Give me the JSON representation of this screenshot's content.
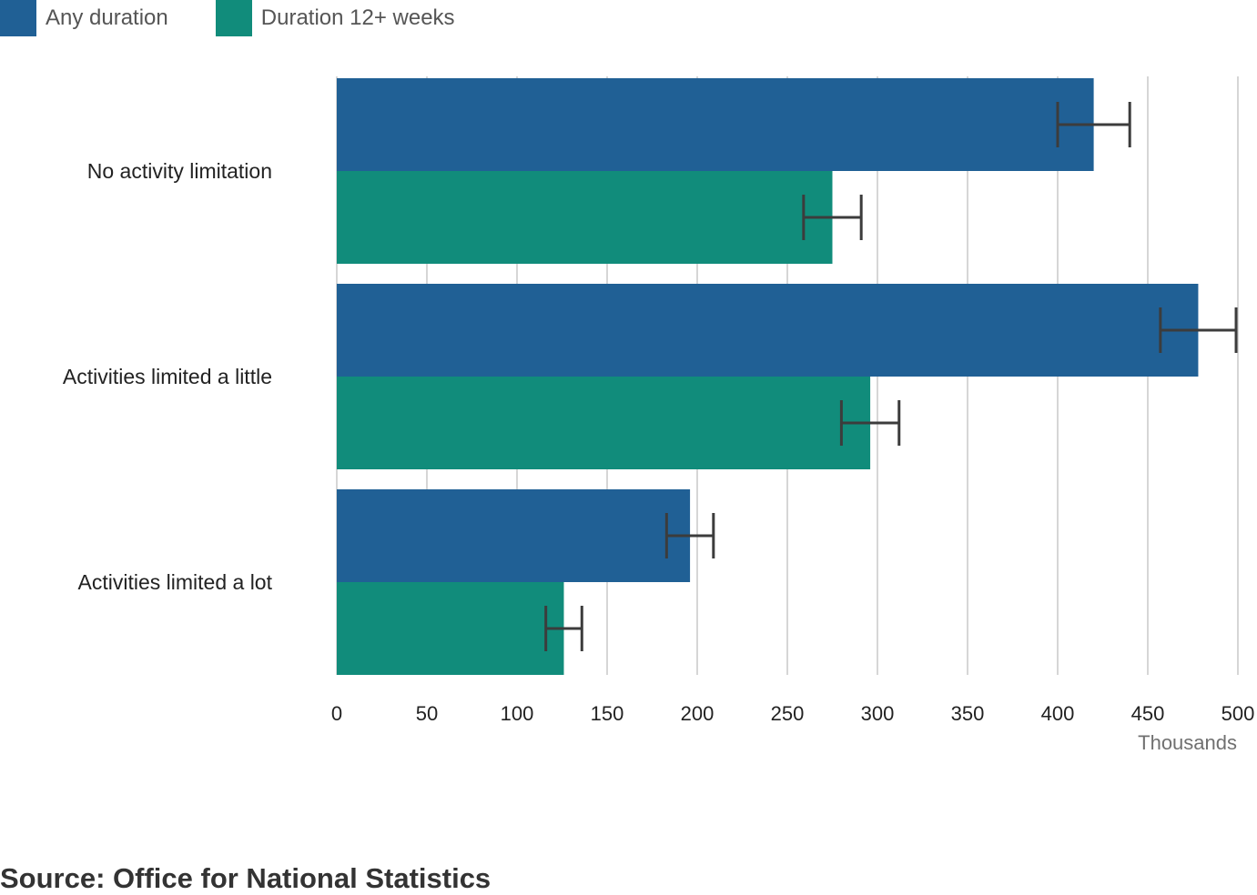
{
  "legend": [
    {
      "label": "Any duration",
      "color": "#206095"
    },
    {
      "label": "Duration 12+ weeks",
      "color": "#118c7b"
    }
  ],
  "chart_data": {
    "type": "bar",
    "orientation": "horizontal",
    "categories": [
      "No activity limitation",
      "Activities limited a little",
      "Activities limited a lot"
    ],
    "series": [
      {
        "name": "Any duration",
        "color": "#206095",
        "values": [
          420,
          478,
          196
        ],
        "ci_low": [
          400,
          457,
          183
        ],
        "ci_high": [
          440,
          499,
          209
        ]
      },
      {
        "name": "Duration 12+ weeks",
        "color": "#118c7b",
        "values": [
          275,
          296,
          126
        ],
        "ci_low": [
          259,
          280,
          116
        ],
        "ci_high": [
          291,
          312,
          136
        ]
      }
    ],
    "xlim": [
      0,
      500
    ],
    "xticks": [
      "0",
      "50",
      "100",
      "150",
      "200",
      "250",
      "300",
      "350",
      "400",
      "450",
      "500"
    ],
    "xlabel": "Thousands",
    "grid": true,
    "legend_position": "top-left"
  },
  "source": "Source: Office for National Statistics"
}
